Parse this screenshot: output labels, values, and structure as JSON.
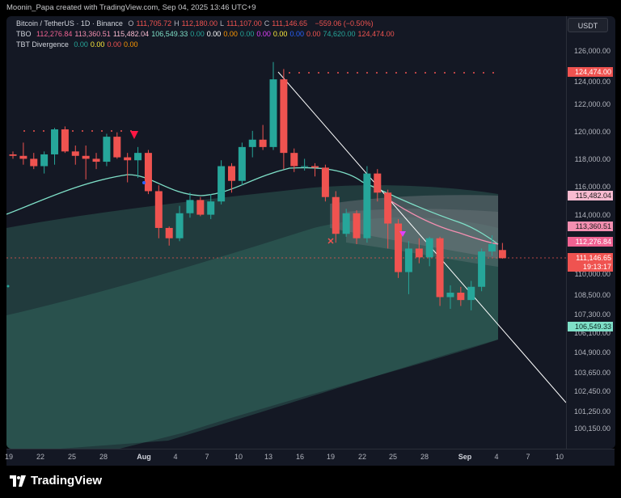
{
  "header": {
    "title": "Moonin_Papa created with TradingView.com, Sep 04, 2025 13:46 UTC+9",
    "symbol": "Bitcoin / TetherUS · 1D · Binance",
    "ohlc": [
      {
        "k": "O",
        "v": "111,705.72"
      },
      {
        "k": "H",
        "v": "112,180.00"
      },
      {
        "k": "L",
        "v": "111,107.00"
      },
      {
        "k": "C",
        "v": "111,146.65"
      }
    ],
    "change": "−559.06 (−0.50%)",
    "tbo_label": "TBO",
    "tbo_values": [
      "112,276.84",
      "113,360.51",
      "115,482.04",
      "106,549.33",
      "0.00",
      "0.00",
      "0.00",
      "0.00",
      "0.00",
      "0.00",
      "0.00",
      "0.00",
      "74,620.00",
      "124,474.00"
    ],
    "tbt_label": "TBT Divergence",
    "tbt_values": [
      "0.00",
      "0.00",
      "0.00",
      "0.00"
    ]
  },
  "currency_button": "USDT",
  "price_axis": [
    "126,000.00",
    "124,000.00",
    "122,000.00",
    "120,000.00",
    "118,000.00",
    "116,000.00",
    "114,000.00",
    "112,000.00",
    "110,000.00",
    "108,500.00",
    "107,300.00",
    "106,100.00",
    "104,900.00",
    "103,650.00",
    "102,450.00",
    "101,250.00",
    "100,150.00"
  ],
  "price_tags": {
    "t124474": "124,474.00",
    "t115482": "115,482.04",
    "t113360": "113,360.51",
    "t112276": "112,276.84",
    "t111146": "111,146.65",
    "countdown": "19:13:17",
    "t106549": "106,549.33"
  },
  "time_axis": [
    "19",
    "22",
    "25",
    "28",
    "Aug",
    "4",
    "7",
    "10",
    "13",
    "16",
    "19",
    "22",
    "25",
    "28",
    "Sep",
    "4",
    "7",
    "10"
  ],
  "branding": "TradingView",
  "colors": {
    "up": "#26a69a",
    "down": "#ef5350",
    "bg": "#141824",
    "mint": "#7fe0c8",
    "pink": "#f48fb1"
  },
  "chart_data": {
    "type": "candlestick",
    "x_start": "2025-07-18",
    "candles": [
      [
        118200,
        118400,
        117900,
        118100
      ],
      [
        118100,
        119000,
        117500,
        117900
      ],
      [
        117900,
        118300,
        117200,
        117400
      ],
      [
        117400,
        118400,
        116900,
        118200
      ],
      [
        118200,
        120000,
        117500,
        119900
      ],
      [
        119900,
        120100,
        118300,
        118400
      ],
      [
        118400,
        118800,
        117500,
        118100
      ],
      [
        118100,
        118800,
        116500,
        117900
      ],
      [
        117900,
        118300,
        117200,
        117700
      ],
      [
        117700,
        119600,
        117400,
        119400
      ],
      [
        119400,
        119700,
        117900,
        118000
      ],
      [
        118000,
        118300,
        116300,
        117800
      ],
      [
        117800,
        118700,
        116600,
        118300
      ],
      [
        118300,
        118500,
        115500,
        115700
      ],
      [
        115700,
        116100,
        112500,
        113200
      ],
      [
        113200,
        113300,
        112000,
        112500
      ],
      [
        112500,
        114700,
        112300,
        114200
      ],
      [
        114200,
        115600,
        113900,
        115100
      ],
      [
        115100,
        115300,
        114000,
        114100
      ],
      [
        114100,
        115500,
        113800,
        115000
      ],
      [
        115000,
        117800,
        114800,
        117400
      ],
      [
        117400,
        117600,
        115600,
        116400
      ],
      [
        116400,
        119000,
        116100,
        118700
      ],
      [
        118700,
        119800,
        118000,
        119200
      ],
      [
        119200,
        120200,
        118500,
        118700
      ],
      [
        118700,
        124474,
        118500,
        123300
      ],
      [
        123300,
        124000,
        117200,
        118300
      ],
      [
        118300,
        118600,
        117000,
        117400
      ],
      [
        117400,
        117900,
        117100,
        117400
      ],
      [
        117400,
        117600,
        116700,
        117300
      ],
      [
        117300,
        117500,
        115000,
        115300
      ],
      [
        115300,
        115700,
        112200,
        112800
      ],
      [
        112800,
        114500,
        112600,
        114200
      ],
      [
        114200,
        114400,
        112100,
        112500
      ],
      [
        112500,
        117400,
        112200,
        116900
      ],
      [
        116900,
        117200,
        115000,
        115600
      ],
      [
        115600,
        115800,
        111800,
        113500
      ],
      [
        113500,
        113800,
        109800,
        110200
      ],
      [
        110200,
        112300,
        108700,
        111800
      ],
      [
        111800,
        112500,
        110800,
        111200
      ],
      [
        111200,
        112600,
        110600,
        112500
      ],
      [
        112500,
        112600,
        107900,
        108500
      ],
      [
        108500,
        109300,
        107700,
        108800
      ],
      [
        108800,
        109200,
        107900,
        108300
      ],
      [
        108300,
        109600,
        107600,
        109200
      ],
      [
        109200,
        111800,
        108900,
        111600
      ],
      [
        111600,
        112700,
        111300,
        112100
      ],
      [
        111700,
        112180,
        111107,
        111146
      ]
    ]
  }
}
